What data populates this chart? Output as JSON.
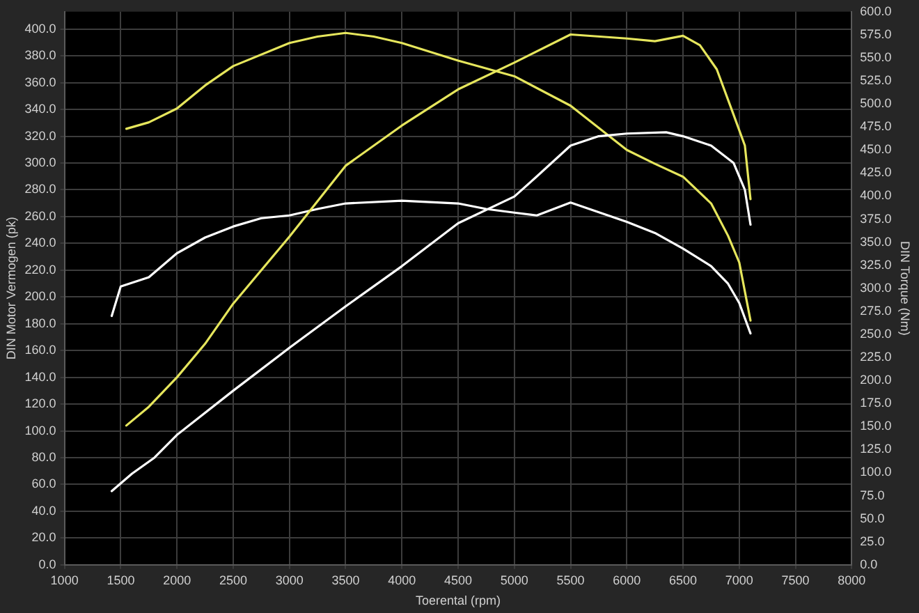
{
  "chart_data": {
    "type": "line",
    "xlabel": "Toerental (rpm)",
    "ylabel": "DIN Motor Vermogen (pk)",
    "y2label": "DIN Torque (Nm)",
    "xlim": [
      1000,
      8000
    ],
    "xticks": [
      1000,
      1500,
      2000,
      2500,
      3000,
      3500,
      4000,
      4500,
      5000,
      5500,
      6000,
      6500,
      7000,
      7500,
      8000
    ],
    "ylim": [
      0,
      413
    ],
    "yticks": [
      {
        "value": 0,
        "label": "0.0"
      },
      {
        "value": 20,
        "label": "20.0"
      },
      {
        "value": 40,
        "label": "40.0"
      },
      {
        "value": 60,
        "label": "60.0"
      },
      {
        "value": 80,
        "label": "80.0"
      },
      {
        "value": 100,
        "label": "100.0"
      },
      {
        "value": 120,
        "label": "120.0"
      },
      {
        "value": 140,
        "label": "140.0"
      },
      {
        "value": 160,
        "label": "160.0"
      },
      {
        "value": 180,
        "label": "180.0"
      },
      {
        "value": 200,
        "label": "200.0"
      },
      {
        "value": 220,
        "label": "220.0"
      },
      {
        "value": 240,
        "label": "240.0"
      },
      {
        "value": 260,
        "label": "260.0"
      },
      {
        "value": 280,
        "label": "280.0"
      },
      {
        "value": 300,
        "label": "300.0"
      },
      {
        "value": 320,
        "label": "320.0"
      },
      {
        "value": 340,
        "label": "340.0"
      },
      {
        "value": 360,
        "label": "360.0"
      },
      {
        "value": 380,
        "label": "380.0"
      },
      {
        "value": 400,
        "label": "400.0"
      }
    ],
    "y2lim": [
      0,
      600
    ],
    "y2ticks": [
      {
        "value": 0,
        "label": "0.0"
      },
      {
        "value": 25,
        "label": "25.0"
      },
      {
        "value": 50,
        "label": "50.0"
      },
      {
        "value": 75,
        "label": "75.0"
      },
      {
        "value": 100,
        "label": "100.0"
      },
      {
        "value": 125,
        "label": "125.0"
      },
      {
        "value": 150,
        "label": "150.0"
      },
      {
        "value": 175,
        "label": "175.0"
      },
      {
        "value": 200,
        "label": "200.0"
      },
      {
        "value": 225,
        "label": "225.0"
      },
      {
        "value": 250,
        "label": "250.0"
      },
      {
        "value": 275,
        "label": "275.0"
      },
      {
        "value": 300,
        "label": "300.0"
      },
      {
        "value": 325,
        "label": "325.0"
      },
      {
        "value": 350,
        "label": "350.0"
      },
      {
        "value": 375,
        "label": "375.0"
      },
      {
        "value": 400,
        "label": "400.0"
      },
      {
        "value": 425,
        "label": "425.0"
      },
      {
        "value": 450,
        "label": "450.0"
      },
      {
        "value": 475,
        "label": "475.0"
      },
      {
        "value": 500,
        "label": "500.0"
      },
      {
        "value": 525,
        "label": "525.0"
      },
      {
        "value": 550,
        "label": "550.0"
      },
      {
        "value": 575,
        "label": "575.0"
      },
      {
        "value": 600,
        "label": "600.0"
      }
    ],
    "grid": true,
    "legend": false,
    "marker": "none",
    "line_style": "solid",
    "series": [
      {
        "color": "#e6e65c",
        "x": [
          1550,
          1750,
          2000,
          2250,
          2500,
          3000,
          3500,
          4000,
          4500,
          5000,
          5500,
          6000,
          6250,
          6500,
          6650,
          6800,
          6950,
          7050,
          7100
        ],
        "values": [
          104,
          118,
          140,
          165,
          195,
          245,
          298,
          328,
          355,
          375,
          396,
          393,
          391,
          395,
          388,
          370,
          336,
          313,
          273
        ]
      },
      {
        "color": "#ffffff",
        "x": [
          1420,
          1600,
          1800,
          2000,
          2500,
          3000,
          3500,
          4000,
          4500,
          5000,
          5200,
          5500,
          5750,
          6000,
          6350,
          6500,
          6750,
          6950,
          7050,
          7100
        ],
        "values": [
          55,
          68,
          80,
          97,
          130,
          162,
          193,
          223,
          255,
          275,
          290,
          313,
          320,
          322,
          323,
          320,
          313,
          300,
          280,
          254
        ]
      },
      {
        "color": "#e6e65c",
        "axis": "y2",
        "x": [
          1550,
          1750,
          2000,
          2250,
          2500,
          3000,
          3250,
          3500,
          3750,
          4000,
          4500,
          5000,
          5500,
          6000,
          6250,
          6500,
          6750,
          6900,
          7000,
          7100
        ],
        "values": [
          473,
          480,
          495,
          520,
          541,
          566,
          573,
          577,
          573,
          566,
          547,
          530,
          498,
          450,
          435,
          421,
          392,
          357,
          328,
          265
        ]
      },
      {
        "color": "#ffffff",
        "axis": "y2",
        "x": [
          1420,
          1500,
          1750,
          2000,
          2250,
          2500,
          2750,
          3000,
          3250,
          3500,
          4000,
          4500,
          4750,
          5000,
          5200,
          5500,
          6000,
          6250,
          6500,
          6750,
          6900,
          7000,
          7100
        ],
        "values": [
          270,
          302,
          312,
          338,
          355,
          367,
          376,
          379,
          386,
          392,
          395,
          392,
          386,
          382,
          379,
          393,
          372,
          360,
          343,
          324,
          305,
          284,
          251
        ]
      }
    ]
  }
}
